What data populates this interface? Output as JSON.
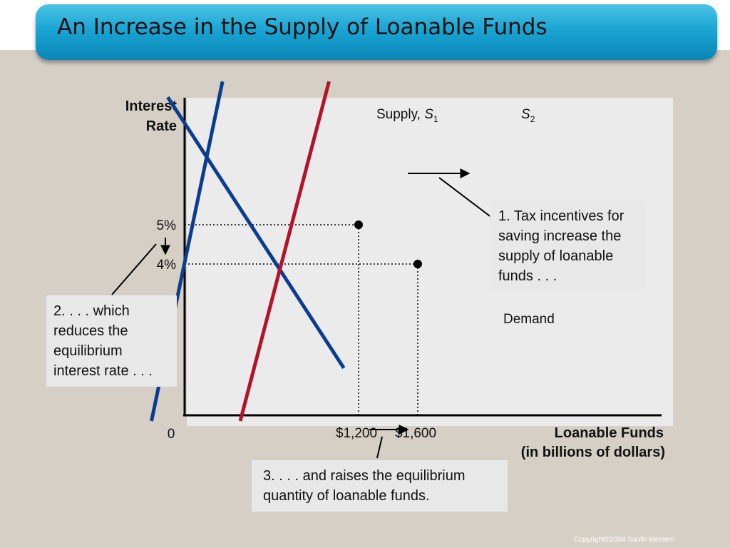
{
  "slide": {
    "title": "An Increase in the Supply of Loanable Funds",
    "copyright": "Copyright©2004  South-Western"
  },
  "chart_data": {
    "type": "line",
    "ylabel_lines": [
      "Interest",
      "Rate"
    ],
    "xlabel_lines": [
      "Loanable Funds",
      "(in billions of dollars)"
    ],
    "origin_label": "0",
    "y_ticks": [
      {
        "label": "5%",
        "value": 5
      },
      {
        "label": "4%",
        "value": 4
      }
    ],
    "x_ticks": [
      {
        "label": "$1,200",
        "value": 1200
      },
      {
        "label": "$1,600",
        "value": 1600
      }
    ],
    "series": [
      {
        "name": "Demand",
        "color": "#0b3d8f",
        "points": [
          [
            -90,
            8.25
          ],
          [
            1100,
            1.35
          ]
        ]
      },
      {
        "name": "Supply, S1",
        "label_main": "Supply, ",
        "label_sym": "S",
        "label_sub": "1",
        "color": "#0b3d8f",
        "points": [
          [
            -200,
            0.0
          ],
          [
            280,
            8.65
          ]
        ]
      },
      {
        "name": "S2",
        "label_main": "",
        "label_sym": "S",
        "label_sub": "2",
        "color": "#b3132a",
        "points": [
          [
            400,
            0.0
          ],
          [
            1000,
            8.65
          ]
        ]
      }
    ],
    "equilibria": [
      {
        "x": 1200,
        "y": 5
      },
      {
        "x": 1600,
        "y": 4
      }
    ]
  },
  "annotations": {
    "a1": [
      "1. Tax incentives for",
      "saving increase the",
      "supply of loanable",
      "funds . . ."
    ],
    "a2": [
      "2. . . . which",
      "reduces the",
      "equilibrium",
      "interest rate . . ."
    ],
    "a3": [
      "3. . . . and raises the equilibrium",
      "quantity of loanable funds."
    ]
  }
}
